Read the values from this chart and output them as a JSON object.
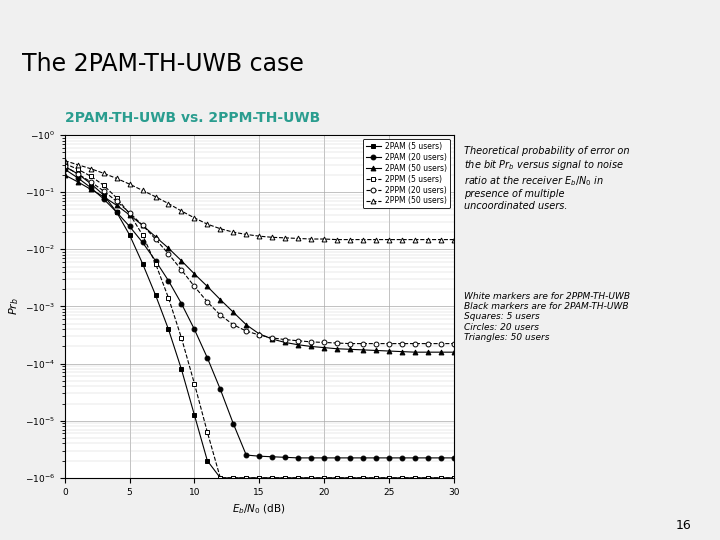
{
  "title_main": "The 2PAM-TH-UWB case",
  "subtitle": "2PAM-TH-UWB vs. 2PPM-TH-UWB",
  "xlabel": "E_b/N_0 (dB)",
  "ylabel": "Pr_b",
  "xlim": [
    0,
    30
  ],
  "bg_color": "#f5f5f5",
  "header_bg": "#f0f0f0",
  "teal_color": "#2a9d8f",
  "subtitle_color": "#2a9d8f",
  "page_num": "16",
  "note_text1": "Theoretical probability of error on\nthe bit Pr_b versus signal to noise\nratio at the receiver Eb/N0 in\npresence of multiple\nuncoordinated users.",
  "note_text2": "White markers are for 2PPM-TH-UWB\nBlack markers are for 2PAM-TH-UWB\nSquares: 5 users\nCircles: 20 users\nTriangles: 50 users",
  "series": {
    "2PAM_5": {
      "label": "2PAM (5 users)",
      "marker": "s",
      "fillstyle": "full",
      "linestyle": "-",
      "x": [
        0,
        1,
        2,
        3,
        4,
        5,
        6,
        7,
        8,
        9,
        10,
        11,
        12,
        13,
        14,
        15,
        16,
        17,
        18,
        19,
        20,
        21,
        22,
        23,
        24,
        25,
        26,
        27,
        28,
        29,
        30
      ],
      "y_exp": [
        -0.55,
        -0.68,
        -0.85,
        -1.05,
        -1.35,
        -1.75,
        -2.25,
        -2.8,
        -3.4,
        -4.1,
        -4.9,
        -5.7,
        -6.5,
        -6.5,
        -6.5,
        -6.5,
        -6.5,
        -6.5,
        -6.5,
        -6.5,
        -6.5,
        -6.5,
        -6.5,
        -6.5,
        -6.5,
        -6.5,
        -6.5,
        -6.5,
        -6.5,
        -6.5,
        -6.5
      ]
    },
    "2PAM_20": {
      "label": "2PAM (20 users)",
      "marker": "o",
      "fillstyle": "full",
      "linestyle": "-",
      "x": [
        0,
        1,
        2,
        3,
        4,
        5,
        6,
        7,
        8,
        9,
        10,
        11,
        12,
        13,
        14,
        15,
        16,
        17,
        18,
        19,
        20,
        21,
        22,
        23,
        24,
        25,
        26,
        27,
        28,
        29,
        30
      ],
      "y_exp": [
        -0.6,
        -0.75,
        -0.92,
        -1.12,
        -1.35,
        -1.6,
        -1.88,
        -2.2,
        -2.55,
        -2.95,
        -3.4,
        -3.9,
        -4.45,
        -5.05,
        -5.6,
        -5.62,
        -5.63,
        -5.64,
        -5.65,
        -5.65,
        -5.65,
        -5.65,
        -5.65,
        -5.65,
        -5.65,
        -5.65,
        -5.65,
        -5.65,
        -5.65,
        -5.65,
        -5.65
      ]
    },
    "2PAM_50": {
      "label": "2PAM (50 users)",
      "marker": "^",
      "fillstyle": "full",
      "linestyle": "-",
      "x": [
        0,
        1,
        2,
        3,
        4,
        5,
        6,
        7,
        8,
        9,
        10,
        11,
        12,
        13,
        14,
        15,
        16,
        17,
        18,
        19,
        20,
        21,
        22,
        23,
        24,
        25,
        26,
        27,
        28,
        29,
        30
      ],
      "y_exp": [
        -0.7,
        -0.82,
        -0.95,
        -1.08,
        -1.23,
        -1.4,
        -1.58,
        -1.78,
        -1.98,
        -2.2,
        -2.43,
        -2.65,
        -2.88,
        -3.1,
        -3.32,
        -3.48,
        -3.57,
        -3.63,
        -3.67,
        -3.7,
        -3.72,
        -3.74,
        -3.75,
        -3.76,
        -3.77,
        -3.78,
        -3.79,
        -3.8,
        -3.8,
        -3.8,
        -3.8
      ]
    },
    "2PPM_5": {
      "label": "2PPM (5 users)",
      "marker": "s",
      "fillstyle": "none",
      "linestyle": "--",
      "x": [
        0,
        1,
        2,
        3,
        4,
        5,
        6,
        7,
        8,
        9,
        10,
        11,
        12,
        13,
        14,
        15,
        16,
        17,
        18,
        19,
        20,
        21,
        22,
        23,
        24,
        25,
        26,
        27,
        28,
        29,
        30
      ],
      "y_exp": [
        -0.5,
        -0.6,
        -0.72,
        -0.88,
        -1.1,
        -1.38,
        -1.75,
        -2.25,
        -2.85,
        -3.55,
        -4.35,
        -5.2,
        -6.0,
        -6.0,
        -6.0,
        -6.0,
        -6.0,
        -6.0,
        -6.0,
        -6.0,
        -6.0,
        -6.0,
        -6.0,
        -6.0,
        -6.0,
        -6.0,
        -6.0,
        -6.0,
        -6.0,
        -6.0,
        -6.0
      ]
    },
    "2PPM_20": {
      "label": "2PPM (20 users)",
      "marker": "o",
      "fillstyle": "none",
      "linestyle": "--",
      "x": [
        0,
        1,
        2,
        3,
        4,
        5,
        6,
        7,
        8,
        9,
        10,
        11,
        12,
        13,
        14,
        15,
        16,
        17,
        18,
        19,
        20,
        21,
        22,
        23,
        24,
        25,
        26,
        27,
        28,
        29,
        30
      ],
      "y_exp": [
        -0.55,
        -0.68,
        -0.82,
        -0.98,
        -1.16,
        -1.36,
        -1.58,
        -1.82,
        -2.08,
        -2.36,
        -2.65,
        -2.92,
        -3.15,
        -3.32,
        -3.43,
        -3.5,
        -3.55,
        -3.58,
        -3.6,
        -3.62,
        -3.63,
        -3.64,
        -3.65,
        -3.65,
        -3.65,
        -3.65,
        -3.65,
        -3.65,
        -3.65,
        -3.65,
        -3.65
      ]
    },
    "2PPM_50": {
      "label": "2PPM (50 users)",
      "marker": "^",
      "fillstyle": "none",
      "linestyle": "--",
      "x": [
        0,
        1,
        2,
        3,
        4,
        5,
        6,
        7,
        8,
        9,
        10,
        11,
        12,
        13,
        14,
        15,
        16,
        17,
        18,
        19,
        20,
        21,
        22,
        23,
        24,
        25,
        26,
        27,
        28,
        29,
        30
      ],
      "y_exp": [
        -0.45,
        -0.52,
        -0.59,
        -0.67,
        -0.76,
        -0.86,
        -0.97,
        -1.08,
        -1.2,
        -1.33,
        -1.45,
        -1.56,
        -1.64,
        -1.7,
        -1.74,
        -1.77,
        -1.79,
        -1.8,
        -1.81,
        -1.82,
        -1.82,
        -1.83,
        -1.83,
        -1.83,
        -1.83,
        -1.83,
        -1.83,
        -1.83,
        -1.83,
        -1.83,
        -1.83
      ]
    }
  }
}
